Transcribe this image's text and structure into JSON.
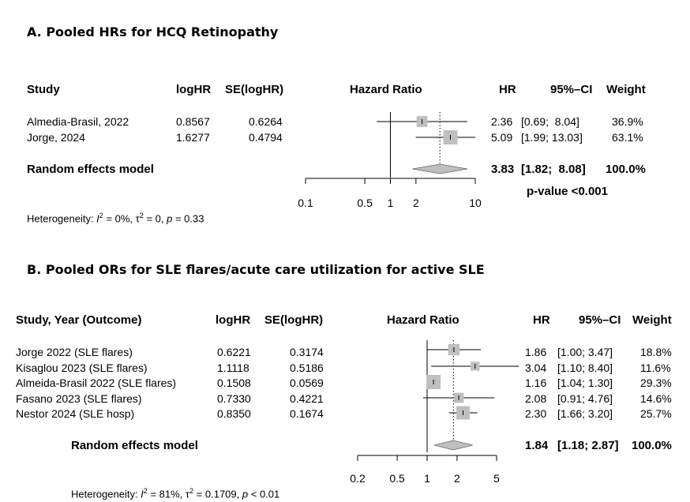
{
  "chart_data": [
    {
      "type": "forest",
      "panel_title": "A.   Pooled HRs for HCQ Retinopathy",
      "columns": {
        "study": "Study",
        "loghr": "logHR",
        "se": "SE(logHR)",
        "axis_label": "Hazard Ratio",
        "hr": "HR",
        "ci": "95%–CI",
        "weight": "Weight"
      },
      "scale": "log",
      "xlim": [
        0.1,
        10
      ],
      "ticks": [
        0.1,
        0.5,
        1,
        2,
        10
      ],
      "tick_labels": [
        "0.1",
        "0.5",
        "1",
        "2",
        "10"
      ],
      "studies": [
        {
          "name": "Almedia-Brasil, 2022",
          "loghr": "0.8567",
          "se": "0.6264",
          "hr": 2.36,
          "lo": 0.69,
          "hi": 8.04,
          "hr_text": "2.36",
          "ci_text": "[0.69;  8.04]",
          "weight": 36.9,
          "weight_text": "36.9%"
        },
        {
          "name": "Jorge, 2024",
          "loghr": "1.6277",
          "se": "0.4794",
          "hr": 5.09,
          "lo": 1.99,
          "hi": 13.03,
          "hr_text": "5.09",
          "ci_text": "[1.99; 13.03]",
          "weight": 63.1,
          "weight_text": "63.1%"
        }
      ],
      "model": {
        "name": "Random effects model",
        "hr": 3.83,
        "lo": 1.82,
        "hi": 8.08,
        "hr_text": "3.83",
        "ci_text": "[1.82;  8.08]",
        "weight_text": "100.0%"
      },
      "pvalue_text": "p-value <0.001",
      "heterogeneity": {
        "prefix": "Heterogeneity: ",
        "i2": "= 0%, ",
        "tau2": "= 0, ",
        "p": "= 0.33"
      }
    },
    {
      "type": "forest",
      "panel_title": "B.   Pooled ORs for SLE flares/acute care utilization for active SLE",
      "columns": {
        "study": "Study, Year (Outcome)",
        "loghr": "logHR",
        "se": "SE(logHR)",
        "axis_label": "Hazard Ratio",
        "hr": "HR",
        "ci": "95%–CI",
        "weight": "Weight"
      },
      "scale": "log",
      "xlim": [
        0.2,
        5
      ],
      "ticks": [
        0.2,
        0.5,
        1,
        2,
        5
      ],
      "tick_labels": [
        "0.2",
        "0.5",
        "1",
        "2",
        "5"
      ],
      "studies": [
        {
          "name": "Jorge 2022 (SLE flares)",
          "loghr": "0.6221",
          "se": "0.3174",
          "hr": 1.86,
          "lo": 1.0,
          "hi": 3.47,
          "hr_text": "1.86",
          "ci_text": "[1.00; 3.47]",
          "weight": 18.8,
          "weight_text": "18.8%"
        },
        {
          "name": "Kisaglou 2023 (SLE flares)",
          "loghr": "1.1118",
          "se": "0.5186",
          "hr": 3.04,
          "lo": 1.1,
          "hi": 8.4,
          "hr_text": "3.04",
          "ci_text": "[1.10; 8.40]",
          "weight": 11.6,
          "weight_text": "11.6%"
        },
        {
          "name": "Almeida-Brasil 2022 (SLE flares)",
          "loghr": "0.1508",
          "se": "0.0569",
          "hr": 1.16,
          "lo": 1.04,
          "hi": 1.3,
          "hr_text": "1.16",
          "ci_text": "[1.04; 1.30]",
          "weight": 29.3,
          "weight_text": "29.3%"
        },
        {
          "name": "Fasano 2023 (SLE flares)",
          "loghr": "0.7330",
          "se": "0.4221",
          "hr": 2.08,
          "lo": 0.91,
          "hi": 4.76,
          "hr_text": "2.08",
          "ci_text": "[0.91; 4.76]",
          "weight": 14.6,
          "weight_text": "14.6%"
        },
        {
          "name": "Nestor 2024 (SLE hosp)",
          "loghr": "0.8350",
          "se": "0.1674",
          "hr": 2.3,
          "lo": 1.66,
          "hi": 3.2,
          "hr_text": "2.30",
          "ci_text": "[1.66; 3.20]",
          "weight": 25.7,
          "weight_text": "25.7%"
        }
      ],
      "model": {
        "name": "Random effects model",
        "hr": 1.84,
        "lo": 1.18,
        "hi": 2.87,
        "hr_text": "1.84",
        "ci_text": "[1.18; 2.87]",
        "weight_text": "100.0%"
      },
      "heterogeneity": {
        "prefix": "Heterogeneity: ",
        "i2": "= 81%, ",
        "tau2": "= 0.1709, ",
        "p": "< 0.01"
      }
    }
  ],
  "colors": {
    "square": "#bfbfbf",
    "diamond": "#bfbfbf",
    "line": "#000000"
  }
}
